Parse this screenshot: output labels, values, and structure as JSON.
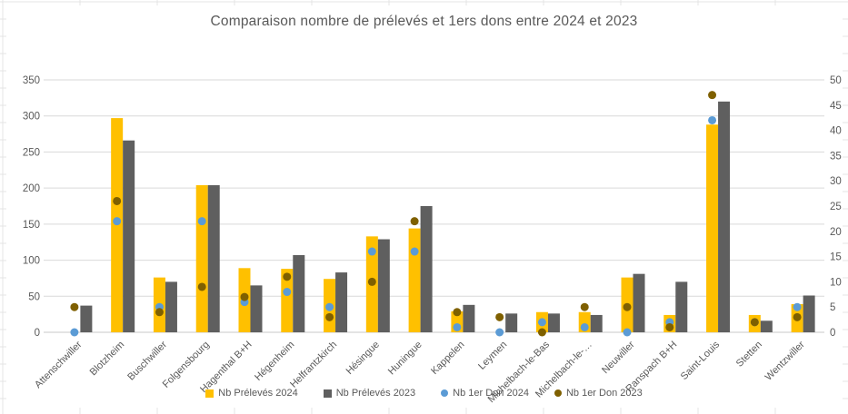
{
  "colors": {
    "accent_yellow": "#FFC000",
    "accent_gray": "#5F5F5F",
    "accent_blue": "#5B9BD5",
    "accent_olive": "#7F6000",
    "text": "#595959",
    "chart_gridline": "#D9D9D9",
    "axis_line": "#C9C9C9",
    "sheet_gridline": "#E4E4E4"
  },
  "chart_data": {
    "type": "bar",
    "title": "Comparaison nombre de prélevés et 1ers dons entre 2024 et 2023",
    "legend_position": "bottom",
    "grid": true,
    "categories": [
      "Attenschwiller",
      "Blotzheim",
      "Buschwiller",
      "Folgensbourg",
      "Hagenthal B+H",
      "Hégenheim",
      "Helfrantzkirch",
      "Hésingue",
      "Huningue",
      "Kappelen",
      "Leymen",
      "Michelbach-le-Bas",
      "Michelbach-le-…",
      "Neuwiller",
      "Ranspach B+H",
      "Saint-Louis",
      "Stetten",
      "Wentzwiller"
    ],
    "series": [
      {
        "name": "Nb Prélevés 2024",
        "type": "bar",
        "axis": "primary",
        "color": "#FFC000",
        "values": [
          0,
          297,
          76,
          204,
          89,
          88,
          74,
          133,
          144,
          29,
          0,
          28,
          28,
          76,
          24,
          288,
          24,
          39
        ]
      },
      {
        "name": "Nb Prélevés 2023",
        "type": "bar",
        "axis": "primary",
        "color": "#5F5F5F",
        "values": [
          37,
          266,
          70,
          204,
          65,
          107,
          83,
          129,
          175,
          38,
          26,
          26,
          24,
          81,
          70,
          320,
          16,
          51
        ]
      },
      {
        "name": "Nb 1er Don 2024",
        "type": "scatter",
        "axis": "secondary",
        "color": "#5B9BD5",
        "values": [
          0,
          22,
          5,
          22,
          6,
          8,
          5,
          16,
          16,
          1,
          0,
          2,
          1,
          0,
          2,
          42,
          2,
          5
        ]
      },
      {
        "name": "Nb 1er Don 2023",
        "type": "scatter",
        "axis": "secondary",
        "color": "#7F6000",
        "values": [
          5,
          26,
          4,
          9,
          7,
          11,
          3,
          10,
          22,
          4,
          3,
          0,
          5,
          5,
          1,
          47,
          2,
          3
        ]
      }
    ],
    "primary_axis": {
      "min": 0,
      "max": 350,
      "step": 50,
      "tick_labels": [
        "0",
        "50",
        "100",
        "150",
        "200",
        "250",
        "300",
        "350"
      ]
    },
    "secondary_axis": {
      "min": 0,
      "max": 50,
      "step": 5,
      "tick_labels": [
        "0",
        "5",
        "10",
        "15",
        "20",
        "25",
        "30",
        "35",
        "40",
        "45",
        "50"
      ]
    }
  }
}
